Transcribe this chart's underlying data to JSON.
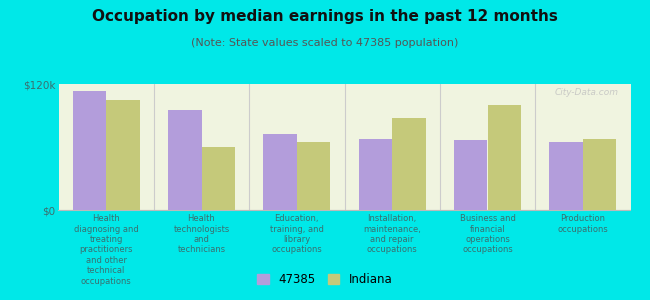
{
  "title": "Occupation by median earnings in the past 12 months",
  "subtitle": "(Note: State values scaled to 47385 population)",
  "categories": [
    "Health\ndiagnosing and\ntreating\npractitioners\nand other\ntechnical\noccupations",
    "Health\ntechnologists\nand\ntechnicians",
    "Education,\ntraining, and\nlibrary\noccupations",
    "Installation,\nmaintenance,\nand repair\noccupations",
    "Business and\nfinancial\noperations\noccupations",
    "Production\noccupations"
  ],
  "values_47385": [
    113000,
    95000,
    72000,
    68000,
    67000,
    65000
  ],
  "values_indiana": [
    105000,
    60000,
    65000,
    88000,
    100000,
    68000
  ],
  "color_47385": "#b39ddb",
  "color_indiana": "#c5c97a",
  "ylim": [
    0,
    120000
  ],
  "yticks": [
    0,
    120000
  ],
  "ytick_labels": [
    "$0",
    "$120k"
  ],
  "background_color": "#f0f4e0",
  "outer_background": "#00e8e8",
  "legend_47385": "47385",
  "legend_indiana": "Indiana",
  "bar_width": 0.35,
  "title_fontsize": 11,
  "subtitle_fontsize": 8,
  "watermark": "City-Data.com"
}
